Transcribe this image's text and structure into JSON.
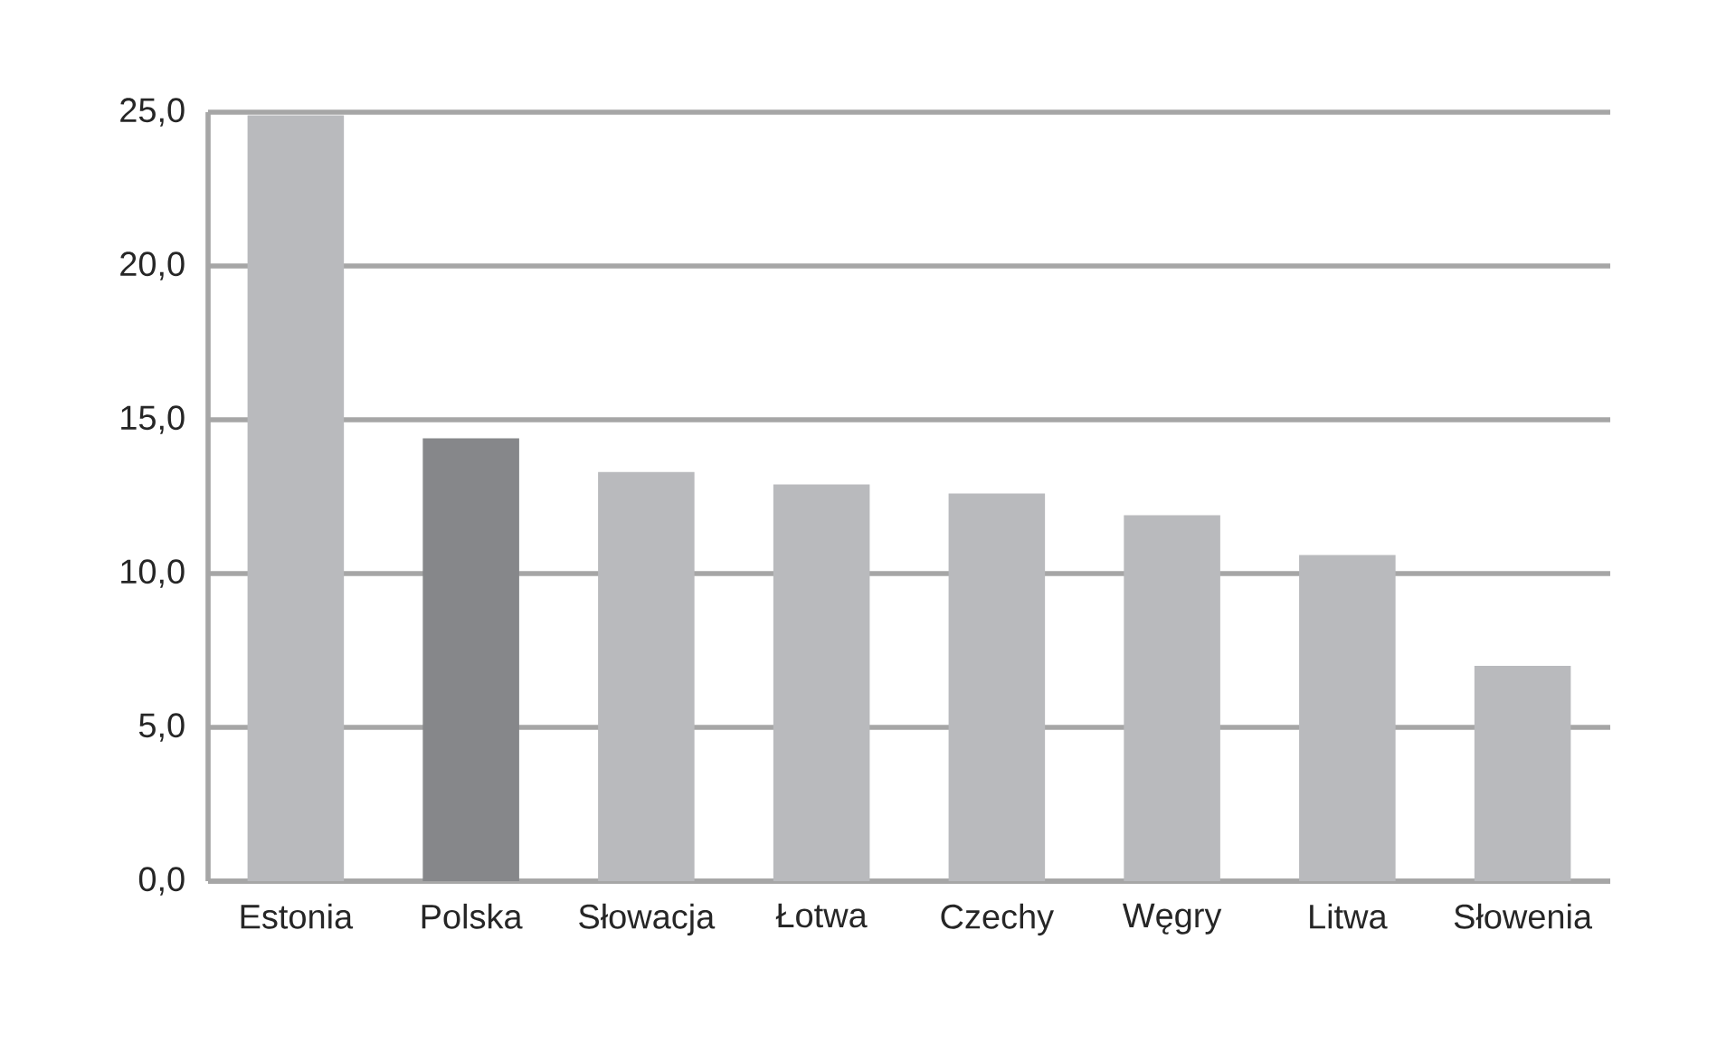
{
  "chart_data": {
    "type": "bar",
    "categories": [
      "Estonia",
      "Polska",
      "Słowacja",
      "Łotwa",
      "Czechy",
      "Węgry",
      "Litwa",
      "Słowenia"
    ],
    "values": [
      24.9,
      14.4,
      13.3,
      12.9,
      12.6,
      11.9,
      10.6,
      7.0
    ],
    "colors": [
      "#b9babd",
      "#86878a",
      "#b9babd",
      "#b9babd",
      "#b9babd",
      "#b9babd",
      "#b9babd",
      "#b9babd"
    ],
    "ylim": [
      0,
      25
    ],
    "yticks": [
      {
        "value": 0,
        "label": "0,0"
      },
      {
        "value": 5,
        "label": "5,0"
      },
      {
        "value": 10,
        "label": "10,0"
      },
      {
        "value": 15,
        "label": "15,0"
      },
      {
        "value": 20,
        "label": "20,0"
      },
      {
        "value": 25,
        "label": "25,0"
      }
    ],
    "grid": "y"
  }
}
